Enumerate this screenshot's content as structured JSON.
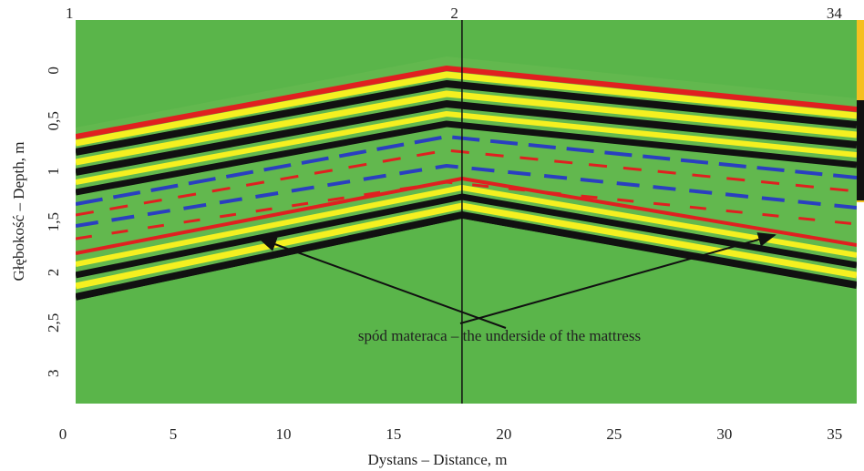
{
  "chart_data": {
    "type": "radargram",
    "xlabel": "Dystans – Distance, m",
    "ylabel": "Głębokość – Depth, m",
    "xlim": [
      0,
      36
    ],
    "xticks": [
      0,
      5,
      10,
      15,
      20,
      25,
      30,
      35
    ],
    "ylim": [
      -0.5,
      3.3
    ],
    "yticks": [
      0,
      {
        "value": 0.5,
        "label": "0,5"
      },
      1,
      {
        "value": 1.5,
        "label": "1,5"
      },
      2,
      {
        "value": 2.5,
        "label": "2,5"
      },
      3
    ],
    "markers": [
      {
        "label": "1",
        "x": 0.3
      },
      {
        "label": "2",
        "x": 18.1
      },
      {
        "label": "34",
        "x": 35.5
      }
    ],
    "annotation": "spód materaca – the underside of the mattress"
  }
}
